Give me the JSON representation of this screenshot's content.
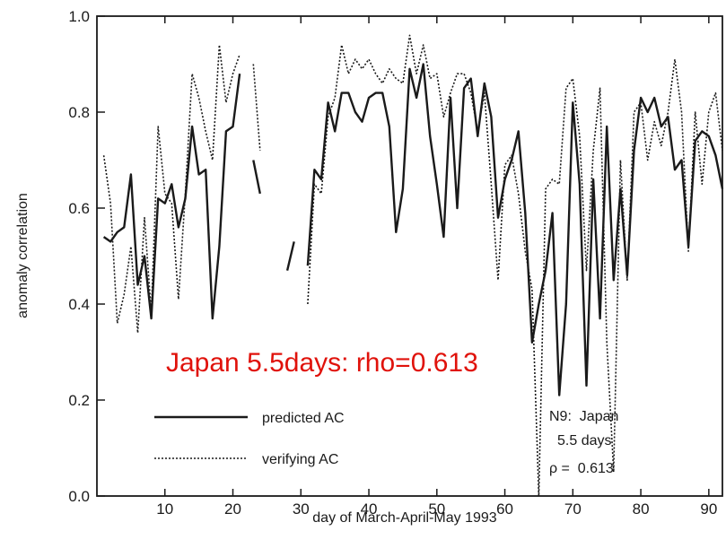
{
  "chart_data": {
    "type": "line",
    "title": "",
    "xlabel": "day of March-April-May 1993",
    "ylabel": "anomaly correlation",
    "xlim": [
      0,
      92
    ],
    "ylim": [
      0.0,
      1.0
    ],
    "x_ticks": [
      10,
      20,
      30,
      40,
      50,
      60,
      70,
      80,
      90
    ],
    "y_ticks": [
      "0.0",
      "0.2",
      "0.4",
      "0.6",
      "0.8",
      "1.0"
    ],
    "grid": false,
    "legend_position": "bottom-left",
    "series": [
      {
        "name": "predicted AC",
        "style": "solid",
        "segments": [
          [
            [
              1,
              0.54
            ],
            [
              2,
              0.53
            ],
            [
              3,
              0.55
            ],
            [
              4,
              0.56
            ],
            [
              5,
              0.67
            ],
            [
              6,
              0.44
            ],
            [
              7,
              0.5
            ],
            [
              8,
              0.37
            ],
            [
              9,
              0.62
            ],
            [
              10,
              0.61
            ],
            [
              11,
              0.65
            ],
            [
              12,
              0.56
            ],
            [
              13,
              0.62
            ],
            [
              14,
              0.77
            ],
            [
              15,
              0.67
            ],
            [
              16,
              0.68
            ],
            [
              17,
              0.37
            ],
            [
              18,
              0.52
            ],
            [
              19,
              0.76
            ],
            [
              20,
              0.77
            ],
            [
              21,
              0.88
            ]
          ],
          [
            [
              23,
              0.7
            ],
            [
              24,
              0.63
            ]
          ],
          [
            [
              28,
              0.47
            ],
            [
              29,
              0.53
            ]
          ],
          [
            [
              31,
              0.48
            ],
            [
              32,
              0.68
            ],
            [
              33,
              0.66
            ],
            [
              34,
              0.82
            ],
            [
              35,
              0.76
            ],
            [
              36,
              0.84
            ],
            [
              37,
              0.84
            ],
            [
              38,
              0.8
            ],
            [
              39,
              0.78
            ],
            [
              40,
              0.83
            ],
            [
              41,
              0.84
            ],
            [
              42,
              0.84
            ],
            [
              43,
              0.77
            ],
            [
              44,
              0.55
            ],
            [
              45,
              0.64
            ],
            [
              46,
              0.89
            ],
            [
              47,
              0.83
            ],
            [
              48,
              0.9
            ],
            [
              49,
              0.75
            ],
            [
              50,
              0.65
            ],
            [
              51,
              0.54
            ],
            [
              52,
              0.83
            ],
            [
              53,
              0.6
            ],
            [
              54,
              0.85
            ],
            [
              55,
              0.87
            ],
            [
              56,
              0.75
            ],
            [
              57,
              0.86
            ],
            [
              58,
              0.79
            ],
            [
              59,
              0.58
            ],
            [
              60,
              0.66
            ],
            [
              61,
              0.7
            ],
            [
              62,
              0.76
            ],
            [
              63,
              0.59
            ],
            [
              64,
              0.32
            ],
            [
              65,
              0.4
            ],
            [
              66,
              0.47
            ],
            [
              67,
              0.59
            ],
            [
              68,
              0.21
            ],
            [
              69,
              0.4
            ],
            [
              70,
              0.82
            ],
            [
              71,
              0.65
            ],
            [
              72,
              0.23
            ],
            [
              73,
              0.66
            ],
            [
              74,
              0.37
            ],
            [
              75,
              0.77
            ],
            [
              76,
              0.45
            ],
            [
              77,
              0.64
            ],
            [
              78,
              0.46
            ],
            [
              79,
              0.72
            ],
            [
              80,
              0.83
            ],
            [
              81,
              0.8
            ],
            [
              82,
              0.83
            ],
            [
              83,
              0.77
            ],
            [
              84,
              0.79
            ],
            [
              85,
              0.68
            ],
            [
              86,
              0.7
            ],
            [
              87,
              0.52
            ],
            [
              88,
              0.74
            ],
            [
              89,
              0.76
            ],
            [
              90,
              0.75
            ],
            [
              91,
              0.71
            ],
            [
              92,
              0.64
            ]
          ]
        ]
      },
      {
        "name": "verifying AC",
        "style": "dotted",
        "segments": [
          [
            [
              1,
              0.71
            ],
            [
              2,
              0.61
            ],
            [
              3,
              0.36
            ],
            [
              4,
              0.42
            ],
            [
              5,
              0.52
            ],
            [
              6,
              0.34
            ],
            [
              7,
              0.58
            ],
            [
              8,
              0.38
            ],
            [
              9,
              0.77
            ],
            [
              10,
              0.63
            ],
            [
              11,
              0.61
            ],
            [
              12,
              0.41
            ],
            [
              13,
              0.63
            ],
            [
              14,
              0.88
            ],
            [
              15,
              0.83
            ],
            [
              16,
              0.76
            ],
            [
              17,
              0.7
            ],
            [
              18,
              0.94
            ],
            [
              19,
              0.82
            ],
            [
              20,
              0.88
            ],
            [
              21,
              0.92
            ]
          ],
          [
            [
              23,
              0.9
            ],
            [
              24,
              0.72
            ]
          ],
          [
            [
              31,
              0.4
            ],
            [
              32,
              0.65
            ],
            [
              33,
              0.63
            ],
            [
              34,
              0.79
            ],
            [
              35,
              0.83
            ],
            [
              36,
              0.94
            ],
            [
              37,
              0.88
            ],
            [
              38,
              0.91
            ],
            [
              39,
              0.89
            ],
            [
              40,
              0.91
            ],
            [
              41,
              0.88
            ],
            [
              42,
              0.86
            ],
            [
              43,
              0.89
            ],
            [
              44,
              0.87
            ],
            [
              45,
              0.86
            ],
            [
              46,
              0.96
            ],
            [
              47,
              0.88
            ],
            [
              48,
              0.94
            ],
            [
              49,
              0.87
            ],
            [
              50,
              0.88
            ],
            [
              51,
              0.79
            ],
            [
              52,
              0.84
            ],
            [
              53,
              0.88
            ],
            [
              54,
              0.88
            ],
            [
              55,
              0.84
            ],
            [
              56,
              0.76
            ],
            [
              57,
              0.84
            ],
            [
              58,
              0.65
            ],
            [
              59,
              0.45
            ],
            [
              60,
              0.69
            ],
            [
              61,
              0.71
            ],
            [
              62,
              0.63
            ],
            [
              63,
              0.51
            ],
            [
              64,
              0.43
            ],
            [
              65,
              0.0
            ],
            [
              66,
              0.64
            ],
            [
              67,
              0.66
            ],
            [
              68,
              0.65
            ],
            [
              69,
              0.85
            ],
            [
              70,
              0.87
            ],
            [
              71,
              0.75
            ],
            [
              72,
              0.47
            ],
            [
              73,
              0.72
            ],
            [
              74,
              0.85
            ],
            [
              75,
              0.32
            ],
            [
              76,
              0.05
            ],
            [
              77,
              0.7
            ],
            [
              78,
              0.45
            ],
            [
              79,
              0.8
            ],
            [
              80,
              0.82
            ],
            [
              81,
              0.7
            ],
            [
              82,
              0.78
            ],
            [
              83,
              0.73
            ],
            [
              84,
              0.8
            ],
            [
              85,
              0.91
            ],
            [
              86,
              0.8
            ],
            [
              87,
              0.51
            ],
            [
              88,
              0.8
            ],
            [
              89,
              0.65
            ],
            [
              90,
              0.8
            ],
            [
              91,
              0.84
            ],
            [
              92,
              0.72
            ]
          ]
        ]
      }
    ],
    "annotation": {
      "lines": [
        "N9:  Japan",
        "5.5 days",
        "ρ =  0.613"
      ]
    },
    "overlay": {
      "text": "Japan 5.5days: rho=0.613",
      "color": "#e0120b"
    },
    "colors": {
      "ink": "#1a1a1a",
      "overlay": "#e0120b"
    }
  }
}
